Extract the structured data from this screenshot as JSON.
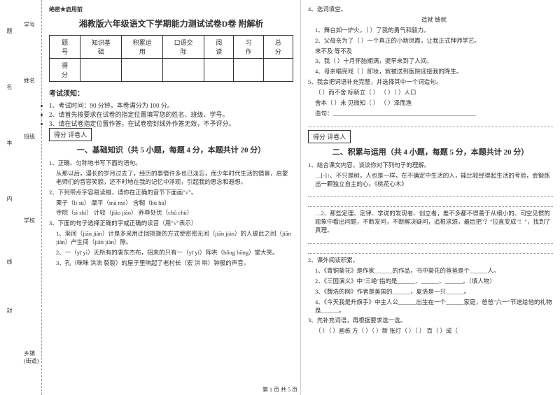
{
  "binding": {
    "labels": [
      "学号",
      "姓名",
      "班级",
      "学校",
      "乡镇(街道)"
    ],
    "side_chars": [
      "题",
      "名",
      "本",
      "内",
      "线",
      "封"
    ]
  },
  "secret": "绝密★启用前",
  "title": "湘教版六年级语文下学期能力测试试卷D卷 附解析",
  "score_table": {
    "headers": [
      "题 号",
      "知识基础",
      "积累运用",
      "口语交际",
      "阅读",
      "习作",
      "总分"
    ],
    "row_label": "得 分"
  },
  "notice_title": "考试须知：",
  "notices": [
    "1、考试时间：90 分钟，本卷满分为 100 分。",
    "2、请首先按要求在试卷的指定位置填写您的姓名、班级、学号。",
    "3、请在试卷指定位置作答，在试卷密封线外作答无效，不予评分。"
  ],
  "scorer": "得分  评卷人",
  "section1": "一、基础知识（共 5 小题，每题 4 分，本题共计 20 分）",
  "q1": {
    "stem": "1、正确、匀称地书写下面的语句。",
    "body": "从那以后，漫长的岁月过去了，经历的事情许多也已淡忘，而少年时代生活的情景，启蒙老师们的音容笑貌，还不时地在我的记忆中浮现，引起我的思念和遐想。"
  },
  "q2": {
    "stem": "2、下列带点字容易读错，请你在正确的音节下面画\"√\"。",
    "lines": [
      "栗子（lì  sù）          摩平（mā  mó）          含糊（hú  hù）",
      "寺院（sì  shì）         计较（jiǎo  jiào）        养尊处优（chǔ  chù）"
    ]
  },
  "q3": {
    "stem": "3、下面的句子选择正确的字或正确的读音（用\"√\"表示）",
    "lines": [
      "1、渐间（jiān  jiàn）计是多采用迂回挑拨的方式使密密无间（jiān  jiàn）的人彼此之间（jiān  jiàn）产生间（jiān  jiàn）隙。",
      "2、一（yī  yì）无所有的唐东杰布，招来的只有一（yī  yí）阵哄（hǒng  hōng）堂大笑。",
      "3、孔（咪咪  洪流  裂裂）的屋子里响起了老村长（宏  洪  哄）钟般的声音。"
    ]
  },
  "q4": {
    "stem": "4、选词填空。",
    "pair": "造就        铸就",
    "lines": [
      "1、舞台如一炉火，（      ）了我的勇气和毅力。",
      "2、父母亲为了（      ）一个真正的小新凤霞，让我正式拜师学艺。",
      "         来不及        等不及",
      "3、我（      ）十月怀胎期满，提早来到了人间。",
      "4、母亲唱完戏（      ）卸妆，就被送到医院迎接我的降生。"
    ]
  },
  "q5": {
    "stem": "5、我会把词语补充完整，并选择其中一个词造句。",
    "lines": [
      "（    ）而不舍           标新立（    ）      （    ）（    ）人口",
      "舍本（    ）末           见微知（    ）      （    ）泽而渔",
      "造句：________________________________________________"
    ]
  },
  "section2": "二、积累与运用（共 4 小题，每题 5 分，本题共计 20 分）",
  "q21": {
    "stem": "1、结合课文内容，谈谈你对下列句子的理解。",
    "s1": "…[-]↑、不只是树，人也是一样，在不确定中生活的人，能比较经得起生活的考验，会锻炼出一颗独立自主的心。《桃花心木》",
    "s2": "…2、那些定理、定律、学说的发现者、创立者，差不多都不得善于从细小的、司空见惯的现象中看出问题，不断发问，不断解决疑问，追根求源，最后把\"？\"拉直变成\"！\"，找到了真理。"
  },
  "q22": {
    "stem": "2、课外阅读积累。",
    "lines": [
      "1、《青铜葵花》是作家______的作品，书中葵花的爸爸是个______人。",
      "2、《三国演义》中\"三绝\"指的是______、______、______。（填人物）",
      "3、《魏浩的网》作者是美国的______，夏洛是一只______。",
      "4、《今天我是升旗手》中主人公______出生在一个______家庭，爸爸\"六一\"节送给他的礼物是______。"
    ]
  },
  "q23": {
    "stem": "3、先补充词语，再根据要求选一选。",
    "line": "（   ）（   ）画栋    方（   ）（   ）新    张灯（   ）（   ）    百（    ）成（"
  },
  "footer": "第 1 页 共 5 页"
}
